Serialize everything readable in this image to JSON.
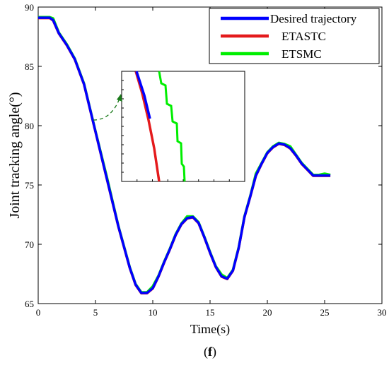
{
  "panel_label": "f",
  "chart_data": {
    "type": "line",
    "xlabel": "Time(s)",
    "ylabel": "Joint tracking angle(°)",
    "xlim": [
      0,
      30
    ],
    "ylim": [
      65,
      90
    ],
    "xticks": [
      0,
      5,
      10,
      15,
      20,
      25,
      30
    ],
    "yticks": [
      65,
      70,
      75,
      80,
      85,
      90
    ],
    "grid": false,
    "legend_position": "top-right",
    "series": [
      {
        "name": "Desired trajectory",
        "color": "#0000ff",
        "x": [
          0,
          0.5,
          1.0,
          1.3,
          1.8,
          2.5,
          3.2,
          4,
          5,
          6,
          7,
          8,
          8.5,
          9.0,
          9.5,
          10.0,
          10.5,
          11,
          11.5,
          12,
          12.5,
          13,
          13.5,
          14,
          14.5,
          15,
          15.5,
          16,
          16.5,
          17,
          17.5,
          18,
          18.5,
          19,
          19.5,
          20,
          20.5,
          21,
          21.5,
          22,
          22.5,
          23,
          23.5,
          24,
          24.5,
          25,
          25.5
        ],
        "y": [
          89.1,
          89.1,
          89.1,
          88.9,
          87.8,
          86.8,
          85.6,
          83.5,
          79.5,
          75.5,
          71.5,
          68.0,
          66.6,
          65.9,
          65.9,
          66.3,
          67.3,
          68.5,
          69.6,
          70.8,
          71.7,
          72.2,
          72.3,
          71.8,
          70.6,
          69.3,
          68.1,
          67.3,
          67.1,
          67.8,
          69.7,
          72.3,
          74.0,
          75.8,
          76.8,
          77.7,
          78.2,
          78.5,
          78.4,
          78.1,
          77.5,
          76.8,
          76.3,
          75.8,
          75.8,
          75.8,
          75.8
        ]
      },
      {
        "name": "ETASTC",
        "color": "#e41a1c",
        "x": [],
        "y": []
      },
      {
        "name": "ETSMC",
        "color": "#00ee00",
        "x": [],
        "y": []
      }
    ]
  }
}
